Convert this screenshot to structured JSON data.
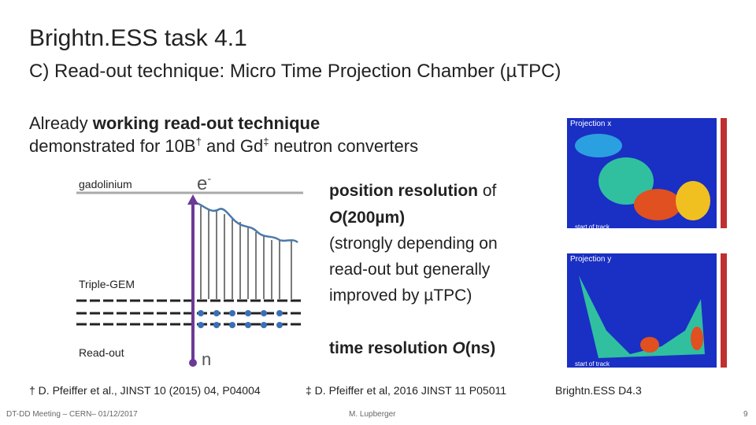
{
  "header": {
    "title": "Brightn.ESS task 4.1",
    "subtitle": "C) Read-out technique: Micro Time Projection Chamber (µTPC)"
  },
  "intro": {
    "line1": [
      "Already ",
      "working read-out technique"
    ],
    "line2": [
      "demonstrated for 10B",
      "†",
      " and Gd",
      "‡",
      " neutron converters"
    ]
  },
  "diagram": {
    "gadolinium": "gadolinium",
    "electron": "e",
    "electron_charge": "-",
    "gem": "Triple-GEM",
    "readout": "Read-out",
    "neutron": "n"
  },
  "resolution": {
    "position": [
      "position resolution",
      " of",
      "O",
      "(200µm)",
      "(strongly depending on",
      "read-out but generally",
      "improved by µTPC)"
    ],
    "time": [
      "time resolution ",
      "O",
      "(ns)"
    ]
  },
  "plots": [
    {
      "label": "Projection x",
      "annotation": "start of track"
    },
    {
      "label": "Projection y",
      "annotation": "start of track"
    }
  ],
  "footnotes": [
    "† D. Pfeiffer et al., JINST 10 (2015) 04, P04004",
    "‡ D. Pfeiffer et al, 2016 JINST 11 P05011",
    "Brightn.ESS D4.3"
  ],
  "footer": {
    "event": "DT-DD Meeting – CERN– 01/12/2017",
    "author": "M. Lupberger",
    "page": "9"
  }
}
